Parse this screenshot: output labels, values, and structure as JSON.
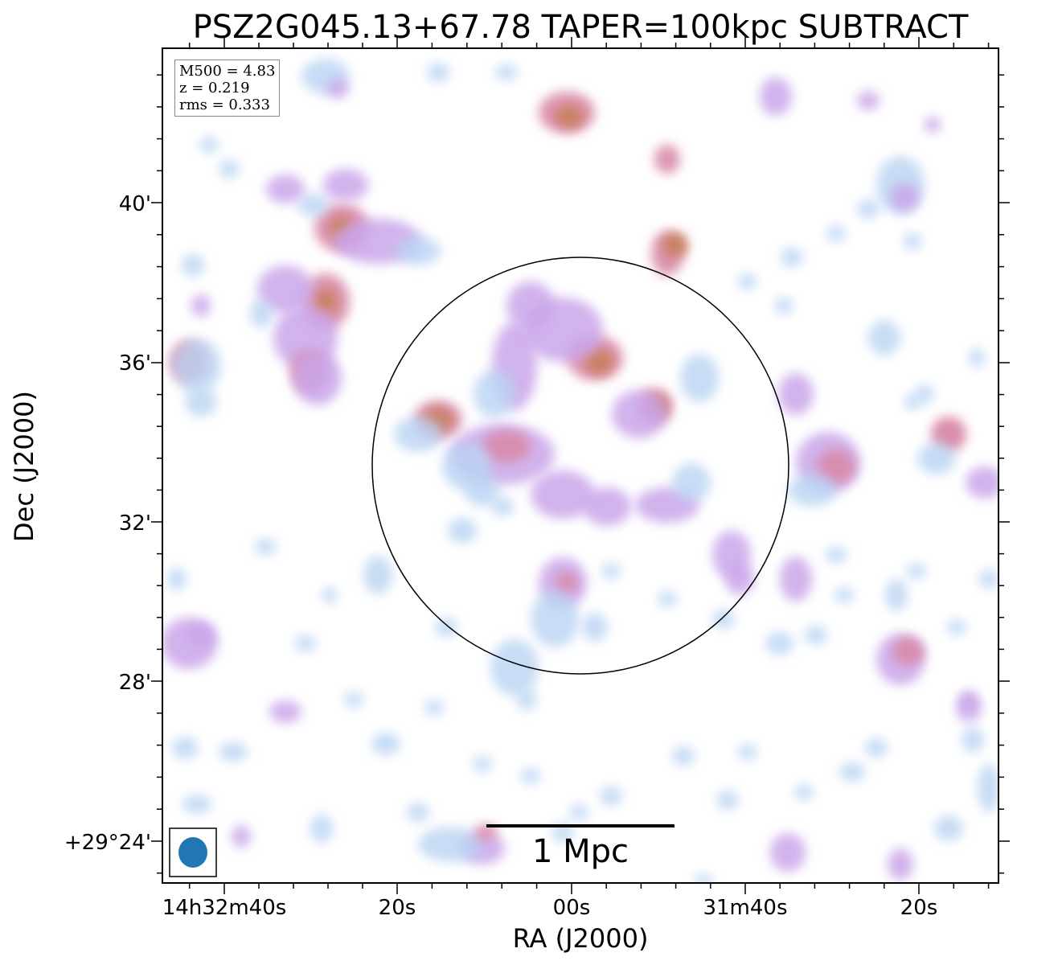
{
  "chart_data": {
    "type": "heatmap",
    "title": "PSZ2G045.13+67.78 TAPER=100kpc SUBTRACT",
    "xlabel": "RA (J2000)",
    "ylabel": "Dec (J2000)",
    "x_axis": {
      "ticks": [
        "14h32m40s",
        "20s",
        "00s",
        "31m40s",
        "20s"
      ]
    },
    "y_axis": {
      "ticks": [
        "40'",
        "36'",
        "32'",
        "28'",
        "+29°24'"
      ]
    },
    "annotations": {
      "m500": "M500 = 4.83",
      "z": "z = 0.219",
      "rms": "rms = 0.333"
    },
    "scalebar_label": "1 Mpc",
    "grid": false,
    "colors": {
      "weak": "#cfe9ee",
      "low": "#b9d3f2",
      "mid": "#c9a6ea",
      "high": "#d98aa8",
      "peak": "#c88060",
      "beam": "#1f77b4"
    }
  }
}
